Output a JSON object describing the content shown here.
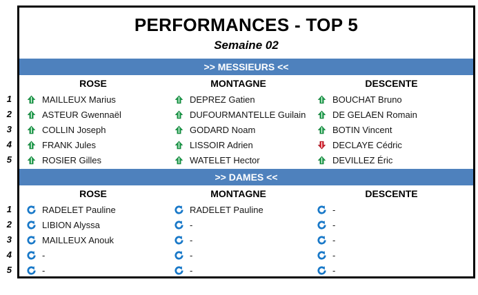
{
  "title": "PERFORMANCES - TOP 5",
  "subtitle": "Semaine 02",
  "columns": [
    "ROSE",
    "MONTAGNE",
    "DESCENTE"
  ],
  "row_numbers": [
    "1",
    "2",
    "3",
    "4",
    "5"
  ],
  "colors": {
    "section_bar": "#4e81bd",
    "up_arrow": "#21a14e",
    "down_arrow": "#d9222e",
    "neutral_arrow": "#1878c8",
    "border": "#000000"
  },
  "icons": {
    "up": "up-arrow-icon",
    "down": "down-arrow-icon",
    "neutral": "rotate-arrow-icon"
  },
  "sections": [
    {
      "key": "messieurs",
      "label": ">> MESSIEURS <<",
      "rows": [
        [
          {
            "icon": "up",
            "name": "MAILLEUX Marius"
          },
          {
            "icon": "up",
            "name": "DEPREZ Gatien"
          },
          {
            "icon": "up",
            "name": "BOUCHAT Bruno"
          }
        ],
        [
          {
            "icon": "up",
            "name": "ASTEUR Gwennaël"
          },
          {
            "icon": "up",
            "name": "DUFOURMANTELLE Guilain"
          },
          {
            "icon": "up",
            "name": "DE GELAEN Romain"
          }
        ],
        [
          {
            "icon": "up",
            "name": "COLLIN Joseph"
          },
          {
            "icon": "up",
            "name": "GODARD Noam"
          },
          {
            "icon": "up",
            "name": "BOTIN Vincent"
          }
        ],
        [
          {
            "icon": "up",
            "name": "FRANK Jules"
          },
          {
            "icon": "up",
            "name": "LISSOIR Adrien"
          },
          {
            "icon": "down",
            "name": "DECLAYE Cédric"
          }
        ],
        [
          {
            "icon": "up",
            "name": "ROSIER Gilles"
          },
          {
            "icon": "up",
            "name": "WATELET Hector"
          },
          {
            "icon": "up",
            "name": "DEVILLEZ Éric"
          }
        ]
      ]
    },
    {
      "key": "dames",
      "label": ">> DAMES <<",
      "rows": [
        [
          {
            "icon": "neutral",
            "name": "RADELET Pauline"
          },
          {
            "icon": "neutral",
            "name": "RADELET Pauline"
          },
          {
            "icon": "neutral",
            "name": "-"
          }
        ],
        [
          {
            "icon": "neutral",
            "name": "LIBION Alyssa"
          },
          {
            "icon": "neutral",
            "name": "-"
          },
          {
            "icon": "neutral",
            "name": "-"
          }
        ],
        [
          {
            "icon": "neutral",
            "name": "MAILLEUX Anouk"
          },
          {
            "icon": "neutral",
            "name": "-"
          },
          {
            "icon": "neutral",
            "name": "-"
          }
        ],
        [
          {
            "icon": "neutral",
            "name": "-"
          },
          {
            "icon": "neutral",
            "name": "-"
          },
          {
            "icon": "neutral",
            "name": "-"
          }
        ],
        [
          {
            "icon": "neutral",
            "name": "-"
          },
          {
            "icon": "neutral",
            "name": "-"
          },
          {
            "icon": "neutral",
            "name": "-"
          }
        ]
      ]
    }
  ]
}
